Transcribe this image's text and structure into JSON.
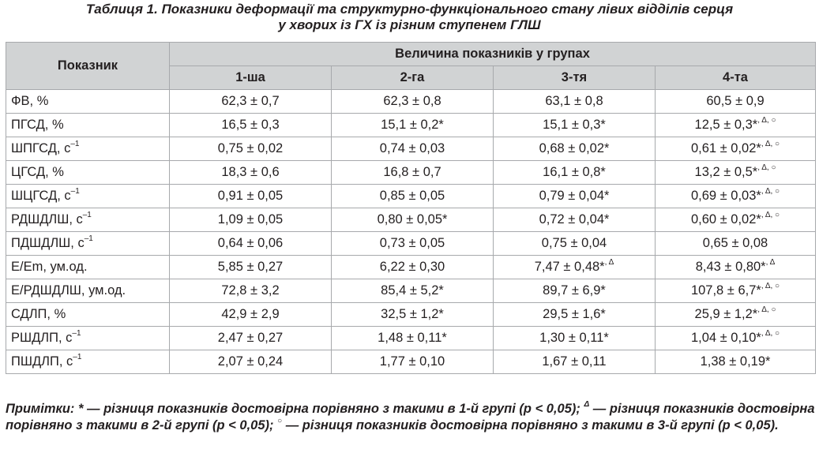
{
  "caption": {
    "line1": "Таблиця 1.  Показники деформації та структурно-функціонального стану лівих відділів серця",
    "line2": "у хворих із ГХ із різним ступенем ГЛШ"
  },
  "table": {
    "header_indicator": "Показник",
    "header_groups": "Величина показників у групах",
    "group_labels": [
      "1-ша",
      "2-га",
      "3-тя",
      "4-та"
    ],
    "rows": [
      {
        "name": "ФВ, %",
        "sup": "",
        "values": [
          {
            "v": "62,3 ± 0,7",
            "m": ""
          },
          {
            "v": "62,3 ± 0,8",
            "m": ""
          },
          {
            "v": "63,1 ± 0,8",
            "m": ""
          },
          {
            "v": "60,5 ± 0,9",
            "m": ""
          }
        ]
      },
      {
        "name": "ПГСД, %",
        "sup": "",
        "values": [
          {
            "v": "16,5 ± 0,3",
            "m": ""
          },
          {
            "v": "15,1 ± 0,2*",
            "m": ""
          },
          {
            "v": "15,1 ± 0,3*",
            "m": ""
          },
          {
            "v": "12,5 ± 0,3*",
            "m": ", Δ, ○"
          }
        ]
      },
      {
        "name": "ШПГСД, с",
        "sup": "–1",
        "values": [
          {
            "v": "0,75 ± 0,02",
            "m": ""
          },
          {
            "v": "0,74 ± 0,03",
            "m": ""
          },
          {
            "v": "0,68 ± 0,02*",
            "m": ""
          },
          {
            "v": "0,61 ± 0,02*",
            "m": ", Δ, ○"
          }
        ]
      },
      {
        "name": "ЦГСД, %",
        "sup": "",
        "values": [
          {
            "v": "18,3 ± 0,6",
            "m": ""
          },
          {
            "v": "16,8 ± 0,7",
            "m": ""
          },
          {
            "v": "16,1 ± 0,8*",
            "m": ""
          },
          {
            "v": "13,2 ± 0,5*",
            "m": ", Δ, ○"
          }
        ]
      },
      {
        "name": "ШЦГСД, с",
        "sup": "–1",
        "values": [
          {
            "v": "0,91 ± 0,05",
            "m": ""
          },
          {
            "v": "0,85 ± 0,05",
            "m": ""
          },
          {
            "v": "0,79 ± 0,04*",
            "m": ""
          },
          {
            "v": "0,69 ± 0,03*",
            "m": ", Δ, ○"
          }
        ]
      },
      {
        "name": "РДШДЛШ, с",
        "sup": "–1",
        "values": [
          {
            "v": "1,09 ± 0,05",
            "m": ""
          },
          {
            "v": "0,80 ± 0,05*",
            "m": ""
          },
          {
            "v": "0,72 ± 0,04*",
            "m": ""
          },
          {
            "v": "0,60 ± 0,02*",
            "m": ", Δ, ○"
          }
        ]
      },
      {
        "name": "ПДШДЛШ, с",
        "sup": "–1",
        "values": [
          {
            "v": "0,64 ± 0,06",
            "m": ""
          },
          {
            "v": "0,73 ± 0,05",
            "m": ""
          },
          {
            "v": "0,75 ± 0,04",
            "m": ""
          },
          {
            "v": "0,65 ± 0,08",
            "m": ""
          }
        ]
      },
      {
        "name": "E/Em, ум.од.",
        "sup": "",
        "values": [
          {
            "v": "5,85 ± 0,27",
            "m": ""
          },
          {
            "v": "6,22 ± 0,30",
            "m": ""
          },
          {
            "v": "7,47 ± 0,48*",
            "m": ", Δ"
          },
          {
            "v": "8,43 ± 0,80*",
            "m": ", Δ"
          }
        ]
      },
      {
        "name": "E/РДШДЛШ, ум.од.",
        "sup": "",
        "values": [
          {
            "v": "72,8 ± 3,2",
            "m": ""
          },
          {
            "v": "85,4 ± 5,2*",
            "m": ""
          },
          {
            "v": "89,7 ± 6,9*",
            "m": ""
          },
          {
            "v": "107,8 ± 6,7*",
            "m": ", Δ, ○"
          }
        ]
      },
      {
        "name": "СДЛП, %",
        "sup": "",
        "values": [
          {
            "v": "42,9 ± 2,9",
            "m": ""
          },
          {
            "v": "32,5 ± 1,2*",
            "m": ""
          },
          {
            "v": "29,5 ± 1,6*",
            "m": ""
          },
          {
            "v": "25,9 ± 1,2*",
            "m": ", Δ, ○"
          }
        ]
      },
      {
        "name": "РШДЛП, с",
        "sup": "–1",
        "values": [
          {
            "v": "2,47 ± 0,27",
            "m": ""
          },
          {
            "v": "1,48 ± 0,11*",
            "m": ""
          },
          {
            "v": "1,30 ± 0,11*",
            "m": ""
          },
          {
            "v": "1,04 ± 0,10*",
            "m": ", Δ, ○"
          }
        ]
      },
      {
        "name": "ПШДЛП, с",
        "sup": "–1",
        "values": [
          {
            "v": "2,07 ± 0,24",
            "m": ""
          },
          {
            "v": "1,77 ± 0,10",
            "m": ""
          },
          {
            "v": "1,67 ± 0,11",
            "m": ""
          },
          {
            "v": "1,38 ± 0,19*",
            "m": ""
          }
        ]
      }
    ]
  },
  "notes": {
    "part1": "Примітки:  * — різниця показників достовірна порівняно з такими в 1-й групі (р < 0,05); ",
    "delta_mark": "Δ",
    "part2": " — різниця показників достовірна порівняно з такими в 2-й групі (р < 0,05); ",
    "circle_mark": "○",
    "part3": " — різниця показників достовірна порівняно з такими в 3-й групі (р < 0,05)."
  }
}
